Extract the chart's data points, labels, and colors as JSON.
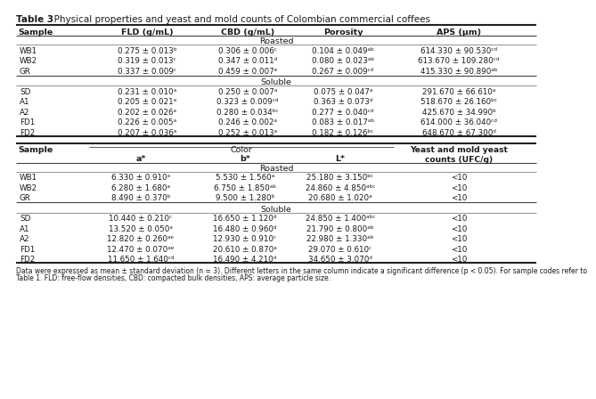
{
  "title_bold": "Table 3",
  "title_rest": ". Physical properties and yeast and mold counts of Colombian commercial coffees",
  "footnote": "Data were expressed as mean ± standard deviation (n = 3). Different letters in the same column indicate a significant difference (p < 0.05). For sample codes refer to\nTable 1. FLD: free-flow densities, CBD: compacted bulk densities, APS: average particle size.",
  "table1": {
    "headers": [
      "Sample",
      "FLD (g/mL)",
      "CBD (g/mL)",
      "Porosity",
      "APS (μm)"
    ],
    "roasted_label": "Roasted",
    "soluble_label": "Soluble",
    "roasted_rows": [
      [
        "WB1",
        "0.275 ± 0.013ᵇ",
        "0.306 ± 0.006ᶜ",
        "0.104 ± 0.049ᵃᵇ",
        "614.330 ± 90.530ᶜᵈ"
      ],
      [
        "WB2",
        "0.319 ± 0.013ᶜ",
        "0.347 ± 0.011ᵈ",
        "0.080 ± 0.023ᵃᵇ",
        "613.670 ± 109.280ᶜᵈ"
      ],
      [
        "GR",
        "0.337 ± 0.009ᶜ",
        "0.459 ± 0.007ᵉ",
        "0.267 ± 0.009ᶜᵈ",
        "415.330 ± 90.890ᵃᵇ"
      ]
    ],
    "soluble_rows": [
      [
        "SD",
        "0.231 ± 0.010ᵃ",
        "0.250 ± 0.007ᵃ",
        "0.075 ± 0.047ᵃ",
        "291.670 ± 66.610ᵃ"
      ],
      [
        "A1",
        "0.205 ± 0.021ᵃ",
        "0.323 ± 0.009ᶜᵈ",
        "0.363 ± 0.073ᵈ",
        "518.670 ± 26.160ᵇᶜ"
      ],
      [
        "A2",
        "0.202 ± 0.026ᵃ",
        "0.280 ± 0.034ᵇᶜ",
        "0.277 ± 0.040ᶜᵈ",
        "425.670 ± 34.990ᵇ"
      ],
      [
        "FD1",
        "0.226 ± 0.005ᵃ",
        "0.246 ± 0.002ᵃ",
        "0.083 ± 0.017ᵃᵇ",
        "614.000 ± 36.040ᶜᵈ"
      ],
      [
        "FD2",
        "0.207 ± 0.036ᵃ",
        "0.252 ± 0.013ᵃ",
        "0.182 ± 0.126ᵇᶜ",
        "648.670 ± 67.300ᵈ"
      ]
    ]
  },
  "table2": {
    "color_label": "Color",
    "headers": [
      "Sample",
      "a*",
      "b*",
      "L*",
      "Yeast and mold yeast\ncounts (UFC/g)"
    ],
    "roasted_label": "Roasted",
    "soluble_label": "Soluble",
    "roasted_rows": [
      [
        "WB1",
        "6.330 ± 0.910ᵃ",
        "5.530 ± 1.560ᵃ",
        "25.180 ± 3.150ᵇᶜ",
        "<10"
      ],
      [
        "WB2",
        "6.280 ± 1.680ᵃ",
        "6.750 ± 1.850ᵃᵇ",
        "24.860 ± 4.850ᵃᵇᶜ",
        "<10"
      ],
      [
        "GR",
        "8.490 ± 0.370ᵇ",
        "9.500 ± 1.280ᵇ",
        "20.680 ± 1.020ᵃ",
        "<10"
      ]
    ],
    "soluble_rows": [
      [
        "SD",
        "10.440 ± 0.210ᶜ",
        "16.650 ± 1.120ᵈ",
        "24.850 ± 1.400ᵃᵇᶜ",
        "<10"
      ],
      [
        "A1",
        "13.520 ± 0.050ᵃ",
        "16.480 ± 0.960ᵈ",
        "21.790 ± 0.800ᵃᵇ",
        "<10"
      ],
      [
        "A2",
        "12.820 ± 0.260ᵃᵉ",
        "12.930 ± 0.910ᶜ",
        "22.980 ± 1.330ᵃᵇ",
        "<10"
      ],
      [
        "FD1",
        "12.470 ± 0.070ᵃᵉ",
        "20.610 ± 0.870ᵃ",
        "29.070 ± 0.610ᶜ",
        "<10"
      ],
      [
        "FD2",
        "11.650 ± 1.640ᶜᵈ",
        "16.490 ± 4.210ᵈ",
        "34.650 ± 3.070ᵈ",
        "<10"
      ]
    ]
  },
  "bg_color": "#ffffff"
}
